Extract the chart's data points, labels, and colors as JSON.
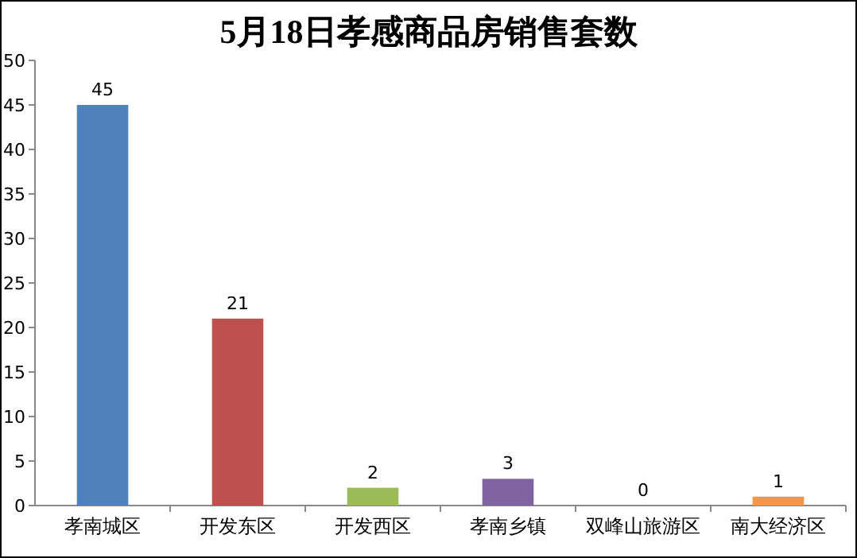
{
  "chart_data": {
    "type": "bar",
    "title": "5月18日孝感商品房销售套数",
    "categories": [
      "孝南城区",
      "开发东区",
      "开发西区",
      "孝南乡镇",
      "双峰山旅游区",
      "南大经济区"
    ],
    "values": [
      45,
      21,
      2,
      3,
      0,
      1
    ],
    "colors": [
      "#4f81bd",
      "#c0504d",
      "#9bbb59",
      "#8064a2",
      "#4bacc6",
      "#f79646"
    ],
    "ylim": [
      0,
      50
    ],
    "yticks": [
      0,
      5,
      10,
      15,
      20,
      25,
      30,
      35,
      40,
      45,
      50
    ],
    "data_labels": true
  }
}
